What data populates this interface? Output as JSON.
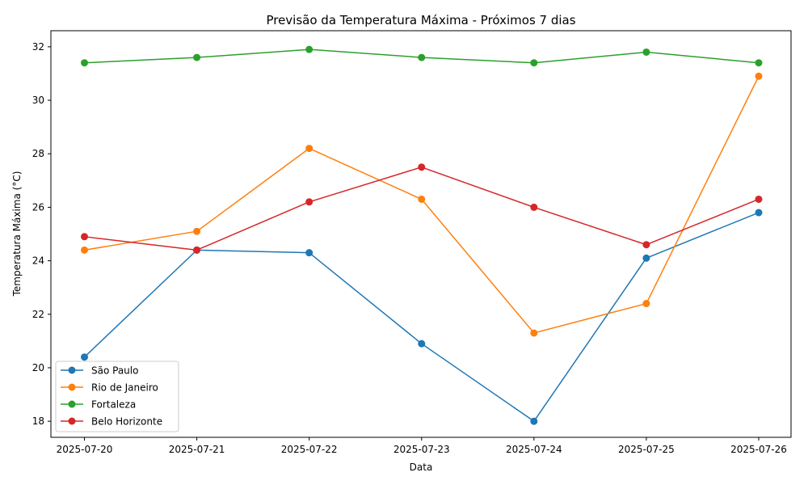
{
  "chart_data": {
    "type": "line",
    "title": "Previsão da Temperatura Máxima - Próximos 7 dias",
    "xlabel": "Data",
    "ylabel": "Temperatura Máxima (°C)",
    "categories": [
      "2025-07-20",
      "2025-07-21",
      "2025-07-22",
      "2025-07-23",
      "2025-07-24",
      "2025-07-25",
      "2025-07-26"
    ],
    "ylim": [
      17.4,
      32.6
    ],
    "yticks": [
      18,
      20,
      22,
      24,
      26,
      28,
      30,
      32
    ],
    "grid": false,
    "legend_position": "lower-left",
    "series": [
      {
        "name": "São Paulo",
        "color": "#1f77b4",
        "values": [
          20.4,
          24.4,
          24.3,
          20.9,
          18.0,
          24.1,
          25.8
        ]
      },
      {
        "name": "Rio de Janeiro",
        "color": "#ff7f0e",
        "values": [
          24.4,
          25.1,
          28.2,
          26.3,
          21.3,
          22.4,
          30.9
        ]
      },
      {
        "name": "Fortaleza",
        "color": "#2ca02c",
        "values": [
          31.4,
          31.6,
          31.9,
          31.6,
          31.4,
          31.8,
          31.4
        ]
      },
      {
        "name": "Belo Horizonte",
        "color": "#d62728",
        "values": [
          24.9,
          24.4,
          26.2,
          27.5,
          26.0,
          24.6,
          26.3
        ]
      }
    ]
  }
}
